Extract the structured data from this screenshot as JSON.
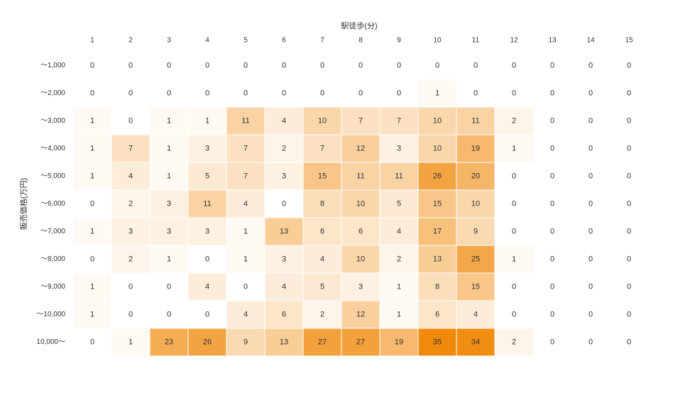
{
  "chart_data": {
    "type": "heatmap",
    "title": "",
    "xlabel": "駅徒歩(分)",
    "ylabel": "販売価格(万円)",
    "x_categories": [
      "1",
      "2",
      "3",
      "4",
      "5",
      "6",
      "7",
      "8",
      "9",
      "10",
      "11",
      "12",
      "13",
      "14",
      "15"
    ],
    "y_categories": [
      "～1,000",
      "～2,000",
      "～3,000",
      "～4,000",
      "～5,000",
      "～6,000",
      "～7,000",
      "～8,000",
      "～9,000",
      "～10,000",
      "10,000～"
    ],
    "values": [
      [
        0,
        0,
        0,
        0,
        0,
        0,
        0,
        0,
        0,
        0,
        0,
        0,
        0,
        0,
        0
      ],
      [
        0,
        0,
        0,
        0,
        0,
        0,
        0,
        0,
        0,
        1,
        0,
        0,
        0,
        0,
        0
      ],
      [
        1,
        0,
        1,
        1,
        11,
        4,
        10,
        7,
        7,
        10,
        11,
        2,
        0,
        0,
        0
      ],
      [
        1,
        7,
        1,
        3,
        7,
        2,
        7,
        12,
        3,
        10,
        19,
        1,
        0,
        0,
        0
      ],
      [
        1,
        4,
        1,
        5,
        7,
        3,
        15,
        11,
        11,
        26,
        20,
        0,
        0,
        0,
        0
      ],
      [
        0,
        2,
        3,
        11,
        4,
        0,
        8,
        10,
        5,
        15,
        10,
        0,
        0,
        0,
        0
      ],
      [
        1,
        3,
        3,
        3,
        1,
        13,
        6,
        6,
        4,
        17,
        9,
        0,
        0,
        0,
        0
      ],
      [
        0,
        2,
        1,
        0,
        1,
        3,
        4,
        10,
        2,
        13,
        25,
        1,
        0,
        0,
        0
      ],
      [
        1,
        0,
        0,
        4,
        0,
        4,
        5,
        3,
        1,
        8,
        15,
        0,
        0,
        0,
        0
      ],
      [
        1,
        0,
        0,
        0,
        4,
        6,
        2,
        12,
        1,
        6,
        4,
        0,
        0,
        0,
        0
      ],
      [
        0,
        1,
        23,
        26,
        9,
        13,
        27,
        27,
        19,
        35,
        34,
        2,
        0,
        0,
        0
      ]
    ],
    "color_scale": {
      "low": "#ffffff",
      "high": "#f08a0c"
    },
    "shaded_columns": [
      "1",
      "2",
      "3",
      "4",
      "5",
      "6",
      "7",
      "8",
      "9",
      "10",
      "11",
      "12"
    ],
    "grid": false,
    "legend": "none"
  }
}
